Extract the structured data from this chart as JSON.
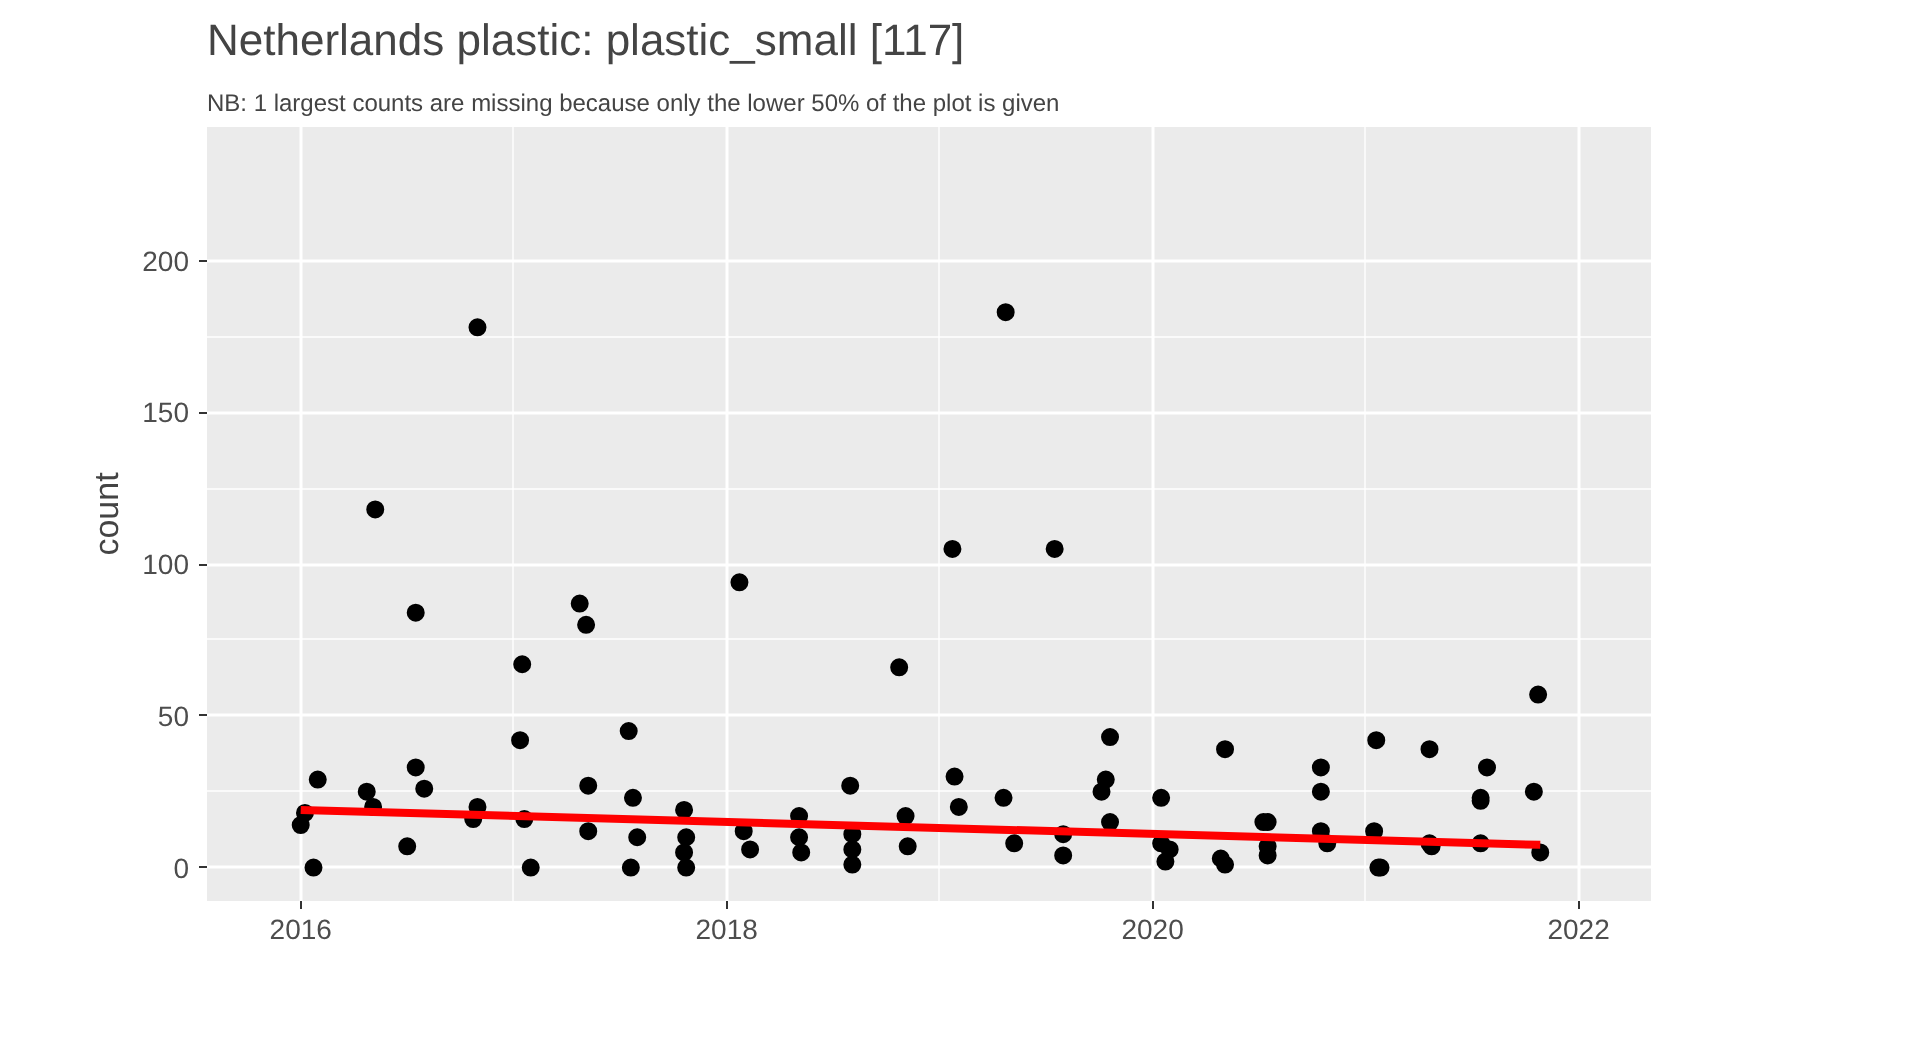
{
  "chart_data": {
    "type": "scatter",
    "title": "Netherlands  plastic: plastic_small [117]",
    "subtitle": "NB: 1 largest counts are missing because only the lower 50% of the plot is given",
    "ylabel": "count",
    "xlim": [
      2015.56,
      2022.34
    ],
    "ylim": [
      -11,
      244
    ],
    "xticks": [
      2016,
      2018,
      2020,
      2022
    ],
    "yticks": [
      0,
      50,
      100,
      150,
      200
    ],
    "grid": true,
    "marker": "circle",
    "series": [
      {
        "color": "#000000",
        "x": [
          2016.0,
          2016.02,
          2016.08,
          2016.06,
          2016.31,
          2016.34,
          2016.35,
          2016.5,
          2016.54,
          2016.54,
          2016.58,
          2016.83,
          2016.81,
          2016.83,
          2017.04,
          2017.03,
          2017.05,
          2017.08,
          2017.31,
          2017.34,
          2017.35,
          2017.35,
          2017.54,
          2017.56,
          2017.58,
          2017.55,
          2017.8,
          2017.81,
          2017.8,
          2017.81,
          2018.06,
          2018.08,
          2018.11,
          2018.34,
          2018.34,
          2018.35,
          2018.58,
          2018.59,
          2018.59,
          2018.59,
          2018.81,
          2018.84,
          2018.85,
          2019.06,
          2019.07,
          2019.09,
          2019.31,
          2019.3,
          2019.35,
          2019.54,
          2019.58,
          2019.58,
          2019.76,
          2019.78,
          2019.8,
          2019.8,
          2020.04,
          2020.04,
          2020.08,
          2020.06,
          2020.34,
          2020.32,
          2020.34,
          2020.52,
          2020.54,
          2020.54,
          2020.54,
          2020.79,
          2020.79,
          2020.79,
          2020.82,
          2021.05,
          2021.04,
          2021.06,
          2021.07,
          2021.3,
          2021.3,
          2021.31,
          2021.54,
          2021.54,
          2021.57,
          2021.54,
          2021.79,
          2021.81,
          2021.82
        ],
        "values": [
          14,
          18,
          29,
          0,
          25,
          20,
          118,
          7,
          84,
          33,
          26,
          178,
          16,
          20,
          67,
          42,
          16,
          0,
          87,
          80,
          12,
          27,
          45,
          23,
          10,
          0,
          19,
          10,
          5,
          0,
          94,
          12,
          6,
          17,
          10,
          5,
          27,
          11,
          6,
          1,
          66,
          17,
          7,
          105,
          30,
          20,
          183,
          23,
          8,
          105,
          11,
          4,
          25,
          29,
          43,
          15,
          23,
          8,
          6,
          2,
          39,
          3,
          1,
          15,
          15,
          7,
          4,
          12,
          33,
          25,
          8,
          42,
          12,
          0,
          0,
          39,
          8,
          7,
          23,
          22,
          33,
          8,
          25,
          57,
          5
        ]
      },
      {
        "type": "line",
        "color": "#ff0000",
        "marker": "none",
        "x": [
          2016.0,
          2021.82
        ],
        "values": [
          19,
          7.5
        ]
      }
    ]
  }
}
